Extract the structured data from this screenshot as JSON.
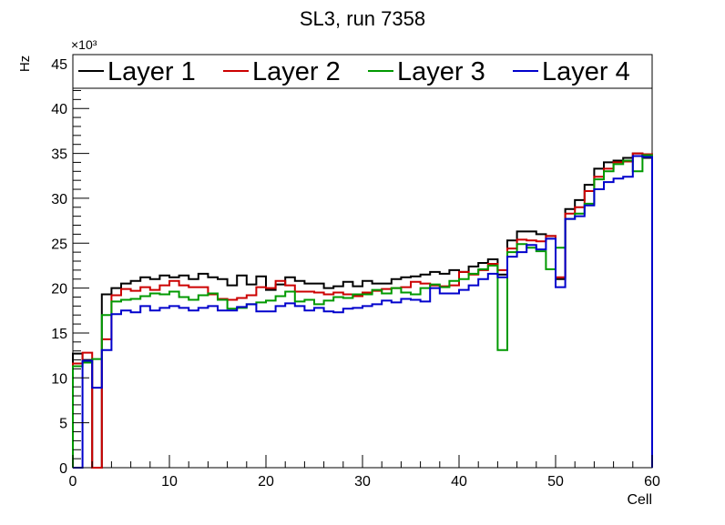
{
  "chart_data": {
    "type": "line",
    "title": "SL3, run 7358",
    "xlabel": "Cell",
    "ylabel": "Hz",
    "y_multiplier": "×10³",
    "xlim": [
      0,
      60
    ],
    "ylim": [
      0,
      46
    ],
    "x_ticks": [
      0,
      10,
      20,
      30,
      40,
      50,
      60
    ],
    "x_tick_labels": [
      "0",
      "10",
      "20",
      "30",
      "40",
      "50",
      "60"
    ],
    "y_ticks": [
      0,
      5,
      10,
      15,
      20,
      25,
      30,
      35,
      40,
      45
    ],
    "y_tick_labels": [
      "0",
      "5",
      "10",
      "15",
      "20",
      "25",
      "30",
      "35",
      "40",
      "45"
    ],
    "legend_position": "top",
    "grid": false,
    "x": [
      0,
      1,
      2,
      3,
      4,
      5,
      6,
      7,
      8,
      9,
      10,
      11,
      12,
      13,
      14,
      15,
      16,
      17,
      18,
      19,
      20,
      21,
      22,
      23,
      24,
      25,
      26,
      27,
      28,
      29,
      30,
      31,
      32,
      33,
      34,
      35,
      36,
      37,
      38,
      39,
      40,
      41,
      42,
      43,
      44,
      45,
      46,
      47,
      48,
      49,
      50,
      51,
      52,
      53,
      54,
      55,
      56,
      57,
      58,
      59
    ],
    "series": [
      {
        "name": "Layer 1",
        "color": "#000000",
        "values": [
          12.7,
          12.0,
          0,
          19.3,
          20.0,
          20.5,
          20.8,
          21.2,
          21.0,
          21.4,
          21.2,
          21.4,
          21.0,
          21.6,
          21.2,
          21.0,
          20.3,
          21.4,
          20.4,
          21.3,
          19.8,
          20.4,
          21.2,
          20.8,
          20.5,
          20.5,
          20.0,
          20.2,
          20.7,
          20.2,
          20.8,
          20.5,
          20.5,
          21.0,
          21.2,
          21.3,
          21.5,
          21.8,
          21.6,
          22.0,
          21.8,
          22.4,
          22.8,
          23.2,
          21.5,
          25.3,
          26.3,
          26.3,
          26.0,
          25.8,
          21.0,
          28.8,
          29.8,
          31.5,
          33.3,
          34.0,
          34.2,
          34.5,
          35.0,
          34.5
        ]
      },
      {
        "name": "Layer 2",
        "color": "#cc0000",
        "values": [
          11.6,
          12.8,
          0,
          14.3,
          19.2,
          19.9,
          19.7,
          20.1,
          19.8,
          20.3,
          20.8,
          20.3,
          20.1,
          20.1,
          19.3,
          18.8,
          18.7,
          18.9,
          19.2,
          20.1,
          20.0,
          20.8,
          20.3,
          19.6,
          19.6,
          19.5,
          19.3,
          19.5,
          19.3,
          19.1,
          19.5,
          19.7,
          19.9,
          20.0,
          20.1,
          20.7,
          20.5,
          20.3,
          20.2,
          20.3,
          21.8,
          21.5,
          22.0,
          22.7,
          22.0,
          24.4,
          25.4,
          25.3,
          25.2,
          25.8,
          21.2,
          28.3,
          29.0,
          30.8,
          32.4,
          33.3,
          34.0,
          34.1,
          35.0,
          34.9
        ]
      },
      {
        "name": "Layer 3",
        "color": "#009900",
        "values": [
          11.3,
          11.7,
          12.1,
          17.0,
          18.5,
          18.7,
          18.8,
          19.1,
          19.4,
          19.3,
          19.6,
          19.0,
          18.7,
          19.2,
          19.4,
          18.7,
          17.7,
          17.8,
          18.2,
          18.4,
          18.6,
          19.1,
          19.6,
          18.5,
          18.7,
          18.2,
          18.6,
          19.0,
          18.9,
          19.3,
          19.3,
          19.8,
          19.4,
          20.0,
          19.5,
          19.3,
          20.0,
          20.4,
          20.1,
          20.8,
          21.0,
          21.6,
          22.1,
          22.5,
          13.1,
          24.0,
          24.9,
          24.5,
          24.1,
          22.1,
          24.5,
          27.7,
          28.3,
          29.4,
          32.1,
          33.0,
          33.8,
          34.2,
          33.0,
          34.8
        ]
      },
      {
        "name": "Layer 4",
        "color": "#0000cc",
        "values": [
          0,
          11.9,
          8.9,
          13.1,
          17.1,
          17.5,
          17.3,
          18.0,
          17.5,
          17.8,
          18.0,
          17.8,
          17.5,
          17.8,
          18.0,
          17.5,
          17.5,
          17.9,
          18.2,
          17.4,
          17.4,
          18.0,
          18.3,
          18.0,
          17.5,
          17.8,
          17.4,
          17.3,
          17.7,
          17.8,
          18.0,
          18.2,
          18.6,
          18.4,
          18.8,
          18.7,
          18.5,
          20.0,
          19.4,
          19.4,
          19.8,
          20.3,
          21.0,
          21.6,
          21.2,
          23.5,
          24.0,
          24.8,
          24.3,
          25.5,
          20.1,
          27.7,
          28.0,
          29.2,
          31.0,
          31.8,
          32.2,
          32.4,
          34.7,
          34.6
        ]
      }
    ]
  }
}
